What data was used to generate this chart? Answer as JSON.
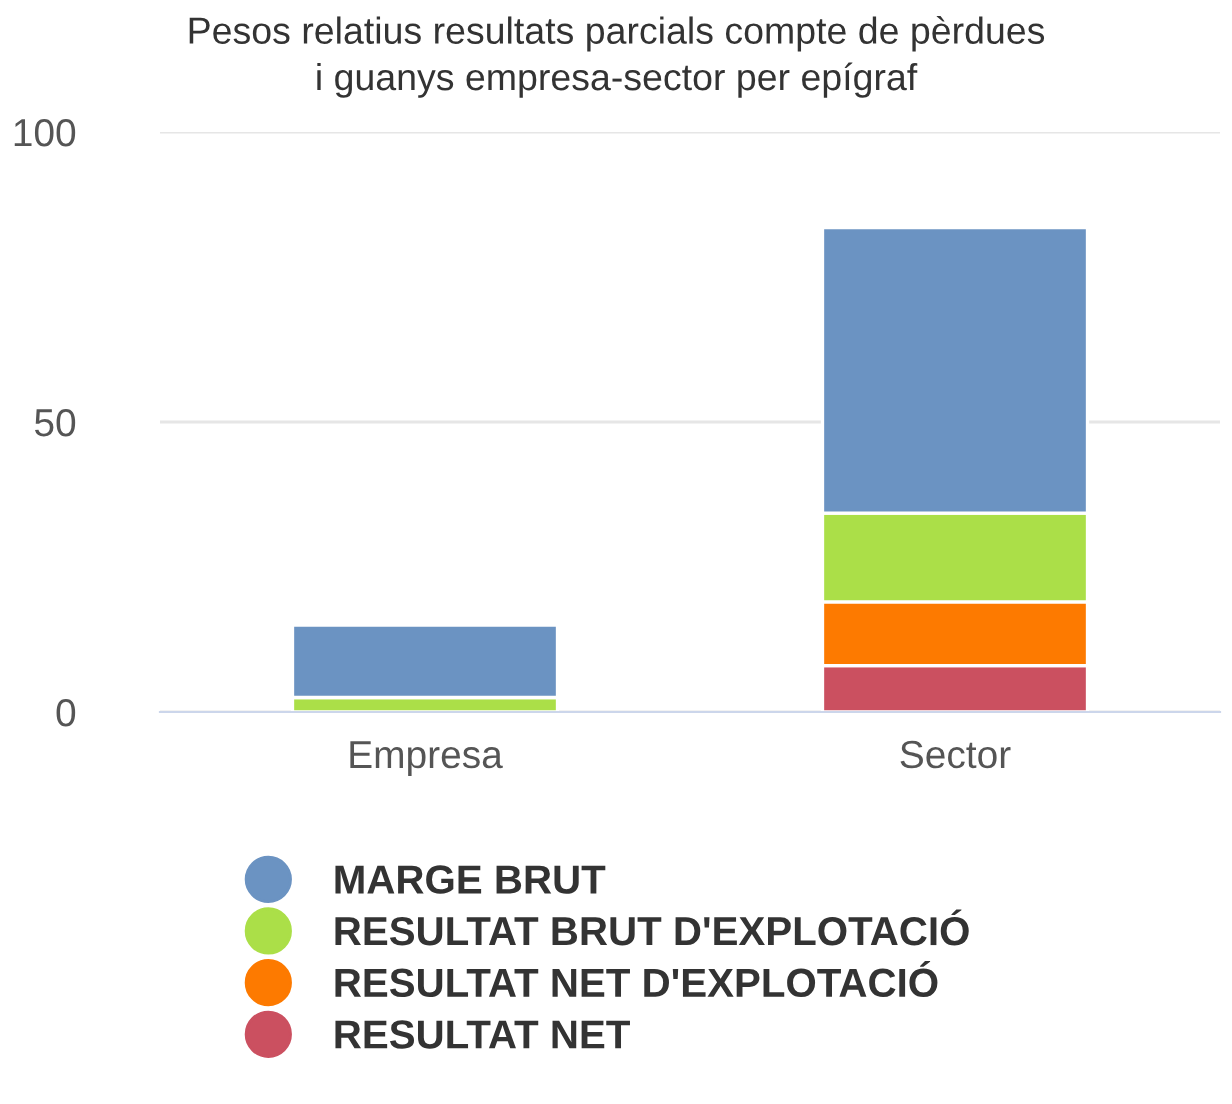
{
  "chart_data": {
    "type": "bar",
    "title": "Pesos relatius resultats parcials compte de pèrdues\ni guanys empresa-sector per epígraf",
    "categories": [
      "Empresa",
      "Sector"
    ],
    "stacked": true,
    "series": [
      {
        "name": "RESULTAT NET",
        "color": "#cb5060",
        "values": [
          0,
          8
        ]
      },
      {
        "name": "RESULTAT NET D'EXPLOTACIÓ",
        "color": "#fd7a00",
        "values": [
          0,
          11
        ]
      },
      {
        "name": "RESULTAT BRUT D'EXPLOTACIÓ",
        "color": "#abdf48",
        "values": [
          2.5,
          15.3
        ]
      },
      {
        "name": "MARGE BRUT",
        "color": "#6b93c2",
        "values": [
          12.5,
          49.2
        ]
      }
    ],
    "ylim": [
      0,
      100
    ],
    "yticks": [
      0,
      50,
      100
    ],
    "grid": "y",
    "legend": "bottom"
  }
}
